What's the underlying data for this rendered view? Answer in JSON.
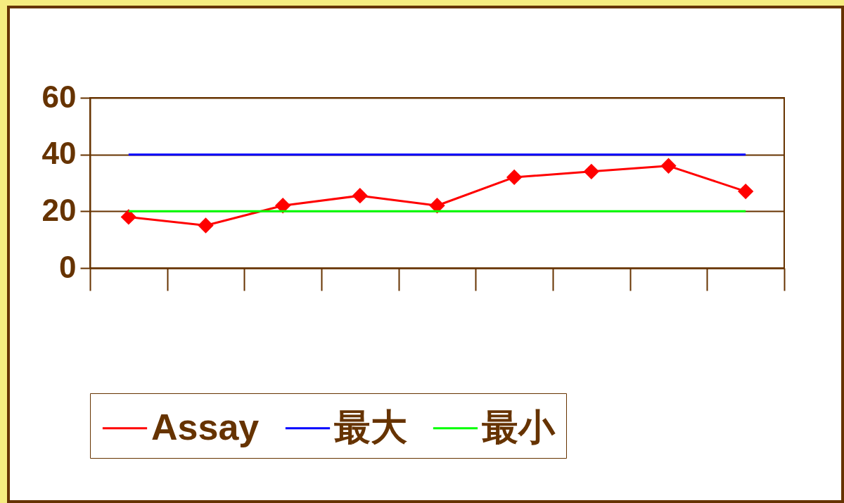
{
  "chart_data": {
    "type": "line",
    "categories": [
      null,
      null,
      null,
      null,
      null,
      null,
      null,
      null,
      null
    ],
    "series": [
      {
        "name": "Assay",
        "color": "#ff0000",
        "marker": "diamond",
        "values": [
          18,
          15,
          22,
          25.5,
          22,
          32,
          34,
          36,
          27
        ]
      },
      {
        "name": "最大",
        "color": "#0000ff",
        "marker": "none",
        "values": [
          40,
          40,
          40,
          40,
          40,
          40,
          40,
          40,
          40
        ]
      },
      {
        "name": "最小",
        "color": "#00ff00",
        "marker": "none",
        "values": [
          20,
          20,
          20,
          20,
          20,
          20,
          20,
          20,
          20
        ]
      }
    ],
    "ylim": [
      0,
      60
    ],
    "yticks": [
      0,
      20,
      40,
      60
    ],
    "grid": "y",
    "legend": "bottom",
    "tick_labels": "y"
  }
}
